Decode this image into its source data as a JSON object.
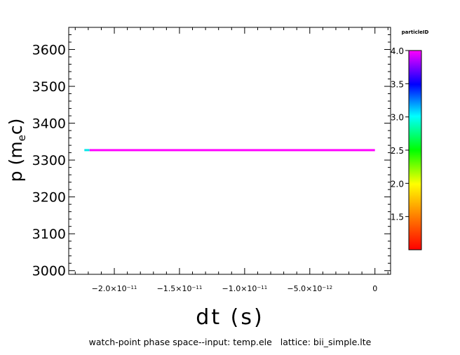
{
  "chart_data": {
    "type": "scatter",
    "title": "",
    "xlabel": "dt (s)",
    "ylabel_main": "p (m",
    "ylabel_sub": "e",
    "ylabel_tail": "c)",
    "caption": "watch-point phase space--input: temp.ele   lattice: bii_simple.lte",
    "xlim": [
      -2.35e-11,
      1.2e-12
    ],
    "ylim": [
      2990,
      3660
    ],
    "x_ticks": [
      {
        "value": -2e-11,
        "mant": "−2.0×10",
        "exp": "−11"
      },
      {
        "value": -1.5e-11,
        "mant": "−1.5×10",
        "exp": "−11"
      },
      {
        "value": -1e-11,
        "mant": "−1.0×10",
        "exp": "−11"
      },
      {
        "value": -5e-12,
        "mant": "−5.0×10",
        "exp": "−12"
      },
      {
        "value": 0,
        "mant": "0",
        "exp": ""
      }
    ],
    "y_ticks": [
      "3000",
      "3100",
      "3200",
      "3300",
      "3400",
      "3500",
      "3600"
    ],
    "colorbar": {
      "label": "particleID",
      "min": 1.0,
      "max": 4.0,
      "ticks": [
        "1.5",
        "2.0",
        "2.5",
        "3.0",
        "3.5",
        "4.0"
      ]
    },
    "series": [
      {
        "x_start": -2.23e-11,
        "x_end": -2.19e-11,
        "y": 3327,
        "color": "#00e8e8"
      },
      {
        "x_start": -2.19e-11,
        "x_end": 0,
        "y": 3327,
        "color": "#ff00ff"
      }
    ]
  }
}
